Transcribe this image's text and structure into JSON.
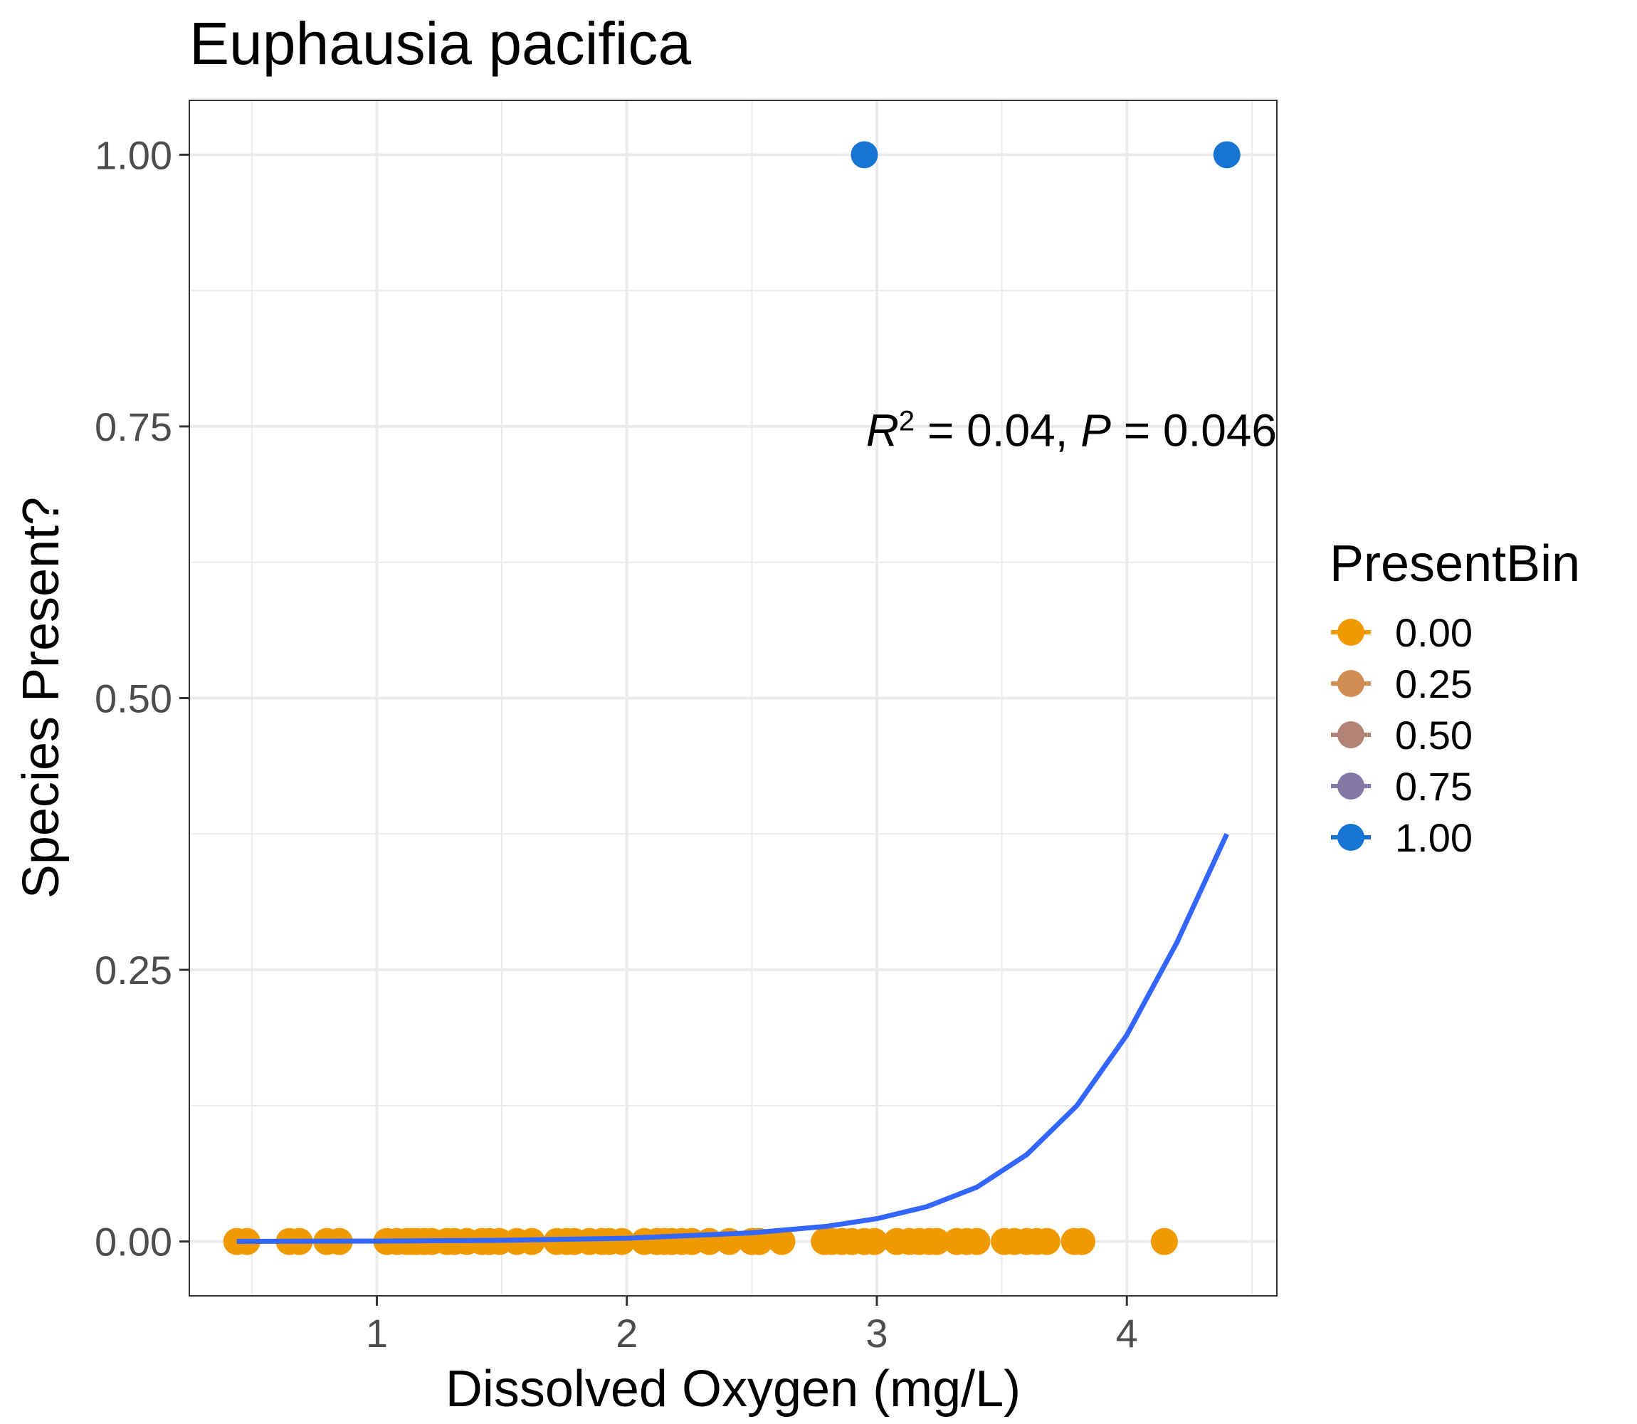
{
  "chart_data": {
    "type": "scatter",
    "title": "Euphausia pacifica",
    "xlabel": "Dissolved Oxygen (mg/L)",
    "ylabel": "Species Present?",
    "xlim": [
      0.25,
      4.6
    ],
    "ylim": [
      -0.05,
      1.05
    ],
    "x_ticks": [
      1,
      2,
      3,
      4
    ],
    "x_tick_labels": [
      "1",
      "2",
      "3",
      "4"
    ],
    "y_ticks": [
      0,
      0.25,
      0.5,
      0.75,
      1
    ],
    "y_tick_labels": [
      "0.00",
      "0.25",
      "0.50",
      "0.75",
      "1.00"
    ],
    "grid": true,
    "legend": {
      "title": "PresentBin",
      "position": "right",
      "entries": [
        {
          "label": "0.00",
          "color": "#f09a00"
        },
        {
          "label": "0.25",
          "color": "#d18e52"
        },
        {
          "label": "0.50",
          "color": "#b28478"
        },
        {
          "label": "0.75",
          "color": "#8478a6"
        },
        {
          "label": "1.00",
          "color": "#1874d2"
        }
      ]
    },
    "annotation": {
      "r2_value": "0.04",
      "p_value": "0.046",
      "x": 4.6,
      "y": 0.745
    },
    "points": {
      "absent_y": 0,
      "absent_x": [
        0.44,
        0.48,
        0.65,
        0.69,
        0.8,
        0.85,
        1.04,
        1.08,
        1.12,
        1.14,
        1.16,
        1.19,
        1.22,
        1.28,
        1.31,
        1.36,
        1.42,
        1.45,
        1.49,
        1.56,
        1.62,
        1.72,
        1.76,
        1.79,
        1.85,
        1.9,
        1.93,
        1.98,
        2.07,
        2.12,
        2.15,
        2.18,
        2.22,
        2.26,
        2.33,
        2.41,
        2.5,
        2.53,
        2.62,
        2.79,
        2.82,
        2.86,
        2.9,
        2.95,
        2.99,
        3.08,
        3.13,
        3.17,
        3.21,
        3.24,
        3.32,
        3.36,
        3.4,
        3.51,
        3.55,
        3.6,
        3.64,
        3.68,
        3.79,
        3.82,
        4.15
      ],
      "present_y": 1,
      "present_x": [
        2.95,
        4.4
      ]
    },
    "fit_curve": {
      "color": "#3366ff",
      "x": [
        0.44,
        1.0,
        1.5,
        2.0,
        2.5,
        2.8,
        3.0,
        3.2,
        3.4,
        3.6,
        3.8,
        4.0,
        4.2,
        4.4
      ],
      "y": [
        0.0001,
        0.0004,
        0.0011,
        0.003,
        0.008,
        0.014,
        0.021,
        0.032,
        0.05,
        0.08,
        0.125,
        0.19,
        0.275,
        0.375
      ]
    }
  }
}
